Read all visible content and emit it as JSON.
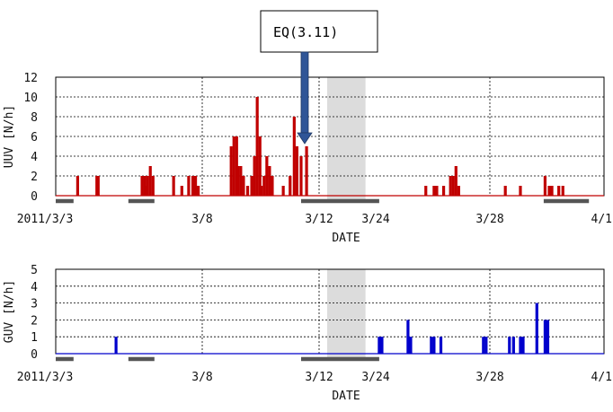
{
  "annotation": {
    "text": "EQ(3.11)"
  },
  "colors": {
    "top_series": "#c00000",
    "bottom_series": "#0000cc",
    "gap": "#d6d6d6",
    "bar_gray": "#555555",
    "arrow": "#2f5597"
  },
  "chart_data": [
    {
      "type": "bar",
      "ylabel": "UUV [N/h]",
      "xlabel": "DATE",
      "ylim": [
        0,
        12
      ],
      "yticks": [
        0,
        2,
        4,
        6,
        8,
        10,
        12
      ],
      "grid": true,
      "x_tick_labels": [
        "2011/3/3",
        "3/8",
        "3/12",
        "3/24",
        "3/28",
        "4/1"
      ],
      "gap_region": [
        9.9,
        11.3
      ],
      "bars": [
        {
          "x": 0.8,
          "y": 2
        },
        {
          "x": 1.5,
          "y": 2
        },
        {
          "x": 1.55,
          "y": 2
        },
        {
          "x": 3.15,
          "y": 2
        },
        {
          "x": 3.25,
          "y": 2
        },
        {
          "x": 3.3,
          "y": 1
        },
        {
          "x": 3.35,
          "y": 2
        },
        {
          "x": 3.45,
          "y": 3
        },
        {
          "x": 3.55,
          "y": 2
        },
        {
          "x": 4.3,
          "y": 2
        },
        {
          "x": 4.6,
          "y": 1
        },
        {
          "x": 4.85,
          "y": 2
        },
        {
          "x": 5.0,
          "y": 2
        },
        {
          "x": 5.1,
          "y": 2
        },
        {
          "x": 5.2,
          "y": 1
        },
        {
          "x": 6.4,
          "y": 5
        },
        {
          "x": 6.5,
          "y": 6
        },
        {
          "x": 6.6,
          "y": 6
        },
        {
          "x": 6.65,
          "y": 3
        },
        {
          "x": 6.75,
          "y": 3
        },
        {
          "x": 6.85,
          "y": 2
        },
        {
          "x": 7.0,
          "y": 1
        },
        {
          "x": 7.15,
          "y": 2
        },
        {
          "x": 7.25,
          "y": 4
        },
        {
          "x": 7.35,
          "y": 10
        },
        {
          "x": 7.45,
          "y": 6
        },
        {
          "x": 7.5,
          "y": 1
        },
        {
          "x": 7.6,
          "y": 2
        },
        {
          "x": 7.7,
          "y": 4
        },
        {
          "x": 7.8,
          "y": 3
        },
        {
          "x": 7.9,
          "y": 2
        },
        {
          "x": 8.3,
          "y": 1
        },
        {
          "x": 8.55,
          "y": 2
        },
        {
          "x": 8.7,
          "y": 8
        },
        {
          "x": 8.8,
          "y": 5
        },
        {
          "x": 8.95,
          "y": 4
        },
        {
          "x": 9.15,
          "y": 5
        },
        {
          "x": 13.5,
          "y": 1
        },
        {
          "x": 13.8,
          "y": 1
        },
        {
          "x": 13.9,
          "y": 1
        },
        {
          "x": 14.15,
          "y": 1
        },
        {
          "x": 14.4,
          "y": 2
        },
        {
          "x": 14.5,
          "y": 2
        },
        {
          "x": 14.6,
          "y": 3
        },
        {
          "x": 14.7,
          "y": 1
        },
        {
          "x": 16.4,
          "y": 1
        },
        {
          "x": 16.95,
          "y": 1
        },
        {
          "x": 17.85,
          "y": 2
        },
        {
          "x": 18.0,
          "y": 1
        },
        {
          "x": 18.1,
          "y": 1
        },
        {
          "x": 18.35,
          "y": 1
        },
        {
          "x": 18.5,
          "y": 1
        }
      ],
      "gray_segments": [
        [
          0,
          0.65
        ],
        [
          2.65,
          3.6
        ],
        [
          8.95,
          11.8
        ],
        [
          17.8,
          19.45
        ]
      ]
    },
    {
      "type": "bar",
      "ylabel": "GUV [N/h]",
      "xlabel": "DATE",
      "ylim": [
        0,
        5
      ],
      "yticks": [
        0,
        1,
        2,
        3,
        4,
        5
      ],
      "grid": true,
      "x_tick_labels": [
        "2011/3/3",
        "3/8",
        "3/12",
        "3/24",
        "3/28",
        "4/1"
      ],
      "gap_region": [
        9.9,
        11.3
      ],
      "bars": [
        {
          "x": 2.2,
          "y": 1
        },
        {
          "x": 11.8,
          "y": 1
        },
        {
          "x": 11.9,
          "y": 1
        },
        {
          "x": 12.85,
          "y": 2
        },
        {
          "x": 12.95,
          "y": 1
        },
        {
          "x": 13.7,
          "y": 1
        },
        {
          "x": 13.8,
          "y": 1
        },
        {
          "x": 14.05,
          "y": 1
        },
        {
          "x": 15.6,
          "y": 1
        },
        {
          "x": 15.7,
          "y": 1
        },
        {
          "x": 16.55,
          "y": 1
        },
        {
          "x": 16.7,
          "y": 1
        },
        {
          "x": 16.95,
          "y": 1
        },
        {
          "x": 17.05,
          "y": 1
        },
        {
          "x": 17.55,
          "y": 3
        },
        {
          "x": 17.85,
          "y": 2
        },
        {
          "x": 17.95,
          "y": 2
        }
      ],
      "gray_segments": [
        [
          0,
          0.65
        ],
        [
          2.65,
          3.6
        ],
        [
          8.95,
          11.8
        ]
      ]
    }
  ]
}
